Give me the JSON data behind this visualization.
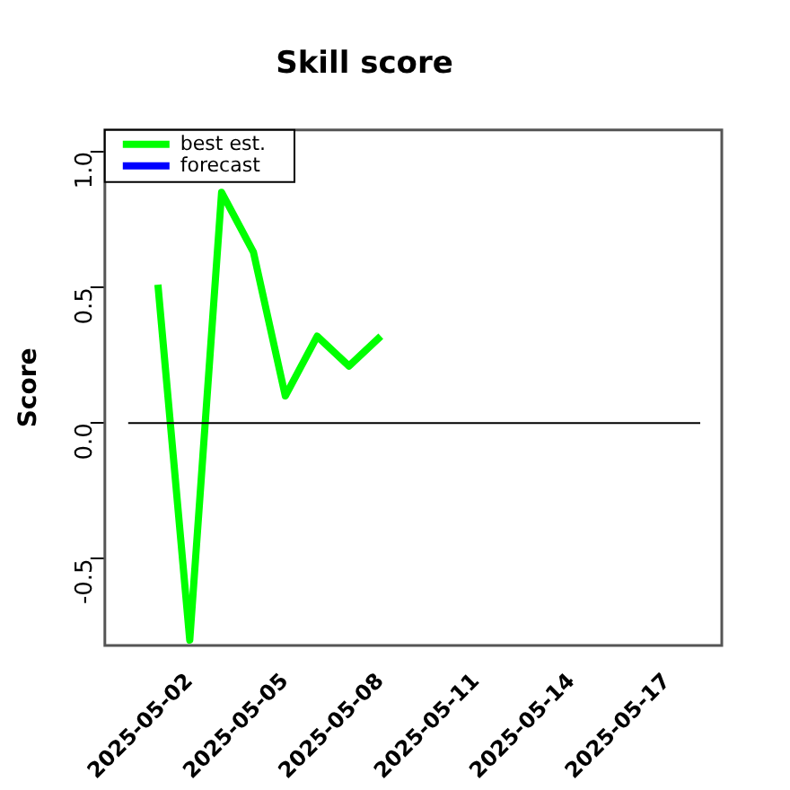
{
  "chart_data": {
    "type": "line",
    "title": "Skill score",
    "ylabel": "Score",
    "x": [
      "2025-05-01",
      "2025-05-02",
      "2025-05-03",
      "2025-05-04",
      "2025-05-05",
      "2025-05-06",
      "2025-05-07",
      "2025-05-08"
    ],
    "series": [
      {
        "name": "best est.",
        "color": "#00ff00",
        "values": [
          0.51,
          -0.8,
          0.85,
          0.63,
          0.1,
          0.32,
          0.21,
          0.32
        ]
      },
      {
        "name": "forecast",
        "color": "#0000ff",
        "values": [
          null,
          null,
          null,
          null,
          null,
          null,
          null,
          null
        ]
      }
    ],
    "xlim": [
      "2025-04-29T08:00",
      "2025-05-18T17:00"
    ],
    "xticks": [
      "2025-05-02",
      "2025-05-05",
      "2025-05-08",
      "2025-05-11",
      "2025-05-14",
      "2025-05-17"
    ],
    "ylim": [
      -0.82,
      1.08
    ],
    "yticks": [
      -0.5,
      {
        "value": 0,
        "label": "0.0"
      },
      0.5,
      {
        "value": 1,
        "label": "1.0"
      }
    ],
    "ref_lines": [
      {
        "axis": "y",
        "value": 0,
        "color": "#000000"
      }
    ],
    "legend": "top left",
    "grid": false,
    "marker": "none",
    "line_style": "solid"
  }
}
